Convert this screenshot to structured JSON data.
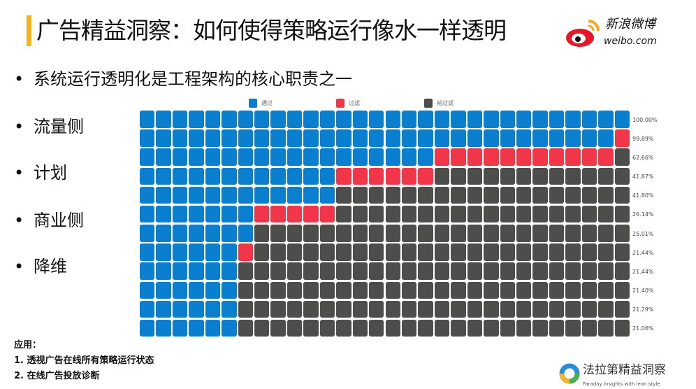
{
  "title": "广告精益洞察：如何使得策略运行像水一样透明",
  "logo": {
    "name": "新浪微博",
    "domain": "weibo.com"
  },
  "bullets": [
    "系统运行透明化是工程架构的核心职责之一",
    "流量侧",
    "计划",
    "商业侧",
    "降维"
  ],
  "applications": {
    "heading": "应用：",
    "items": [
      "1. 透视广告在线所有策略运行状态",
      "2. 在线广告投放诊断"
    ]
  },
  "footer_logo": {
    "name": "法拉第精益洞察",
    "slogan": "Faraday Insights with lean style"
  },
  "chart_data": {
    "type": "waffle",
    "columns": 30,
    "legend": [
      {
        "label": "通过",
        "color": "#0a7fd0"
      },
      {
        "label": "过滤",
        "color": "#f2364a"
      },
      {
        "label": "前过滤",
        "color": "#4d4e4b"
      }
    ],
    "rows": [
      {
        "pass": 30,
        "filtered": 0,
        "label": "100.00%"
      },
      {
        "pass": 29,
        "filtered": 1,
        "label": "99.89%"
      },
      {
        "pass": 18,
        "filtered": 11,
        "label": "62.66%"
      },
      {
        "pass": 12,
        "filtered": 6,
        "label": "41.87%"
      },
      {
        "pass": 12,
        "filtered": 0,
        "label": "41.80%"
      },
      {
        "pass": 7,
        "filtered": 5,
        "label": "26.14%"
      },
      {
        "pass": 7,
        "filtered": 0,
        "label": "25.01%"
      },
      {
        "pass": 6,
        "filtered": 1,
        "label": "21.44%"
      },
      {
        "pass": 6,
        "filtered": 0,
        "label": "21.44%"
      },
      {
        "pass": 6,
        "filtered": 0,
        "label": "21.40%"
      },
      {
        "pass": 6,
        "filtered": 0,
        "label": "21.29%"
      },
      {
        "pass": 6,
        "filtered": 0,
        "label": "21.06%"
      }
    ]
  }
}
